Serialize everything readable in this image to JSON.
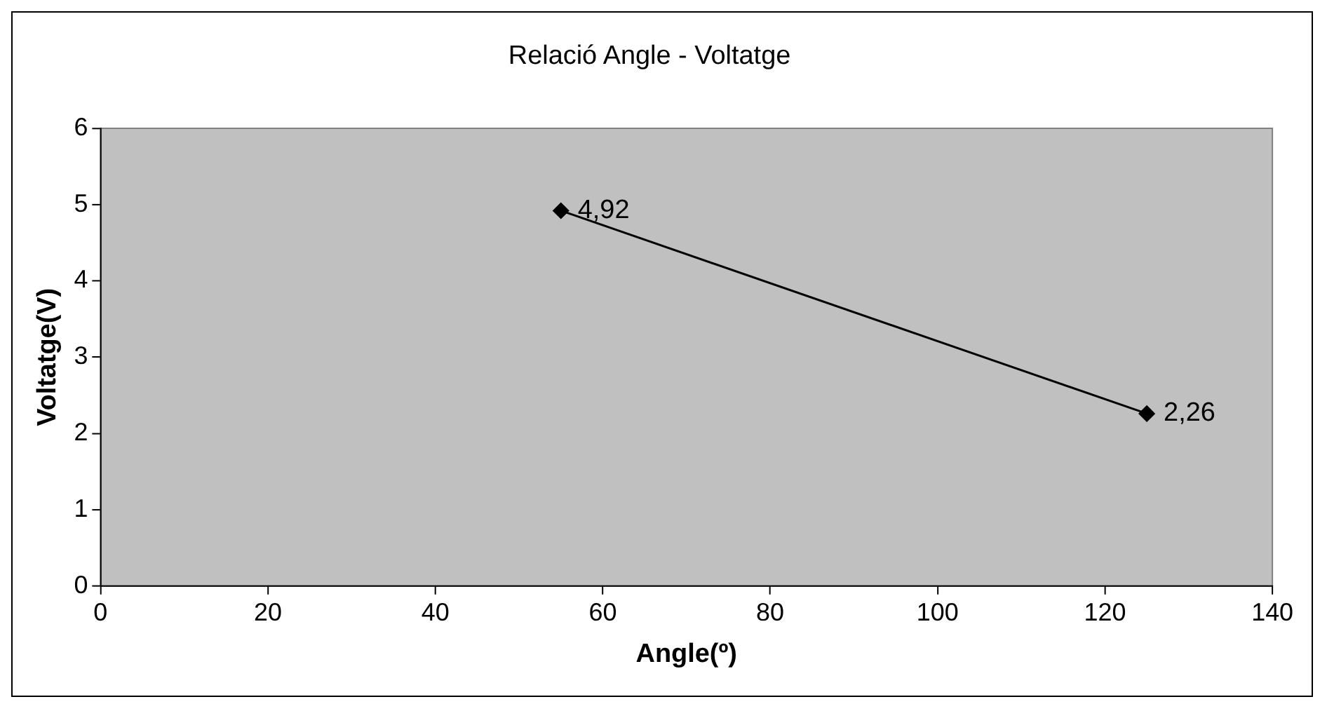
{
  "chart_data": {
    "type": "line",
    "title": "Relació Angle - Voltatge",
    "xlabel": "Angle(º)",
    "ylabel": "Voltatge(V)",
    "x": [
      55,
      125
    ],
    "series": [
      {
        "color": "#000000",
        "values": [
          4.92,
          2.26
        ],
        "value_labels": [
          "4,92",
          "2,26"
        ]
      }
    ],
    "xlim": [
      0,
      140
    ],
    "xticks": [
      0,
      20,
      40,
      60,
      80,
      100,
      120,
      140
    ],
    "ylim": [
      0,
      6
    ],
    "yticks": [
      0,
      1,
      2,
      3,
      4,
      5,
      6
    ],
    "grid": false,
    "legend": false,
    "marker": "diamond",
    "line_style": "solid"
  }
}
